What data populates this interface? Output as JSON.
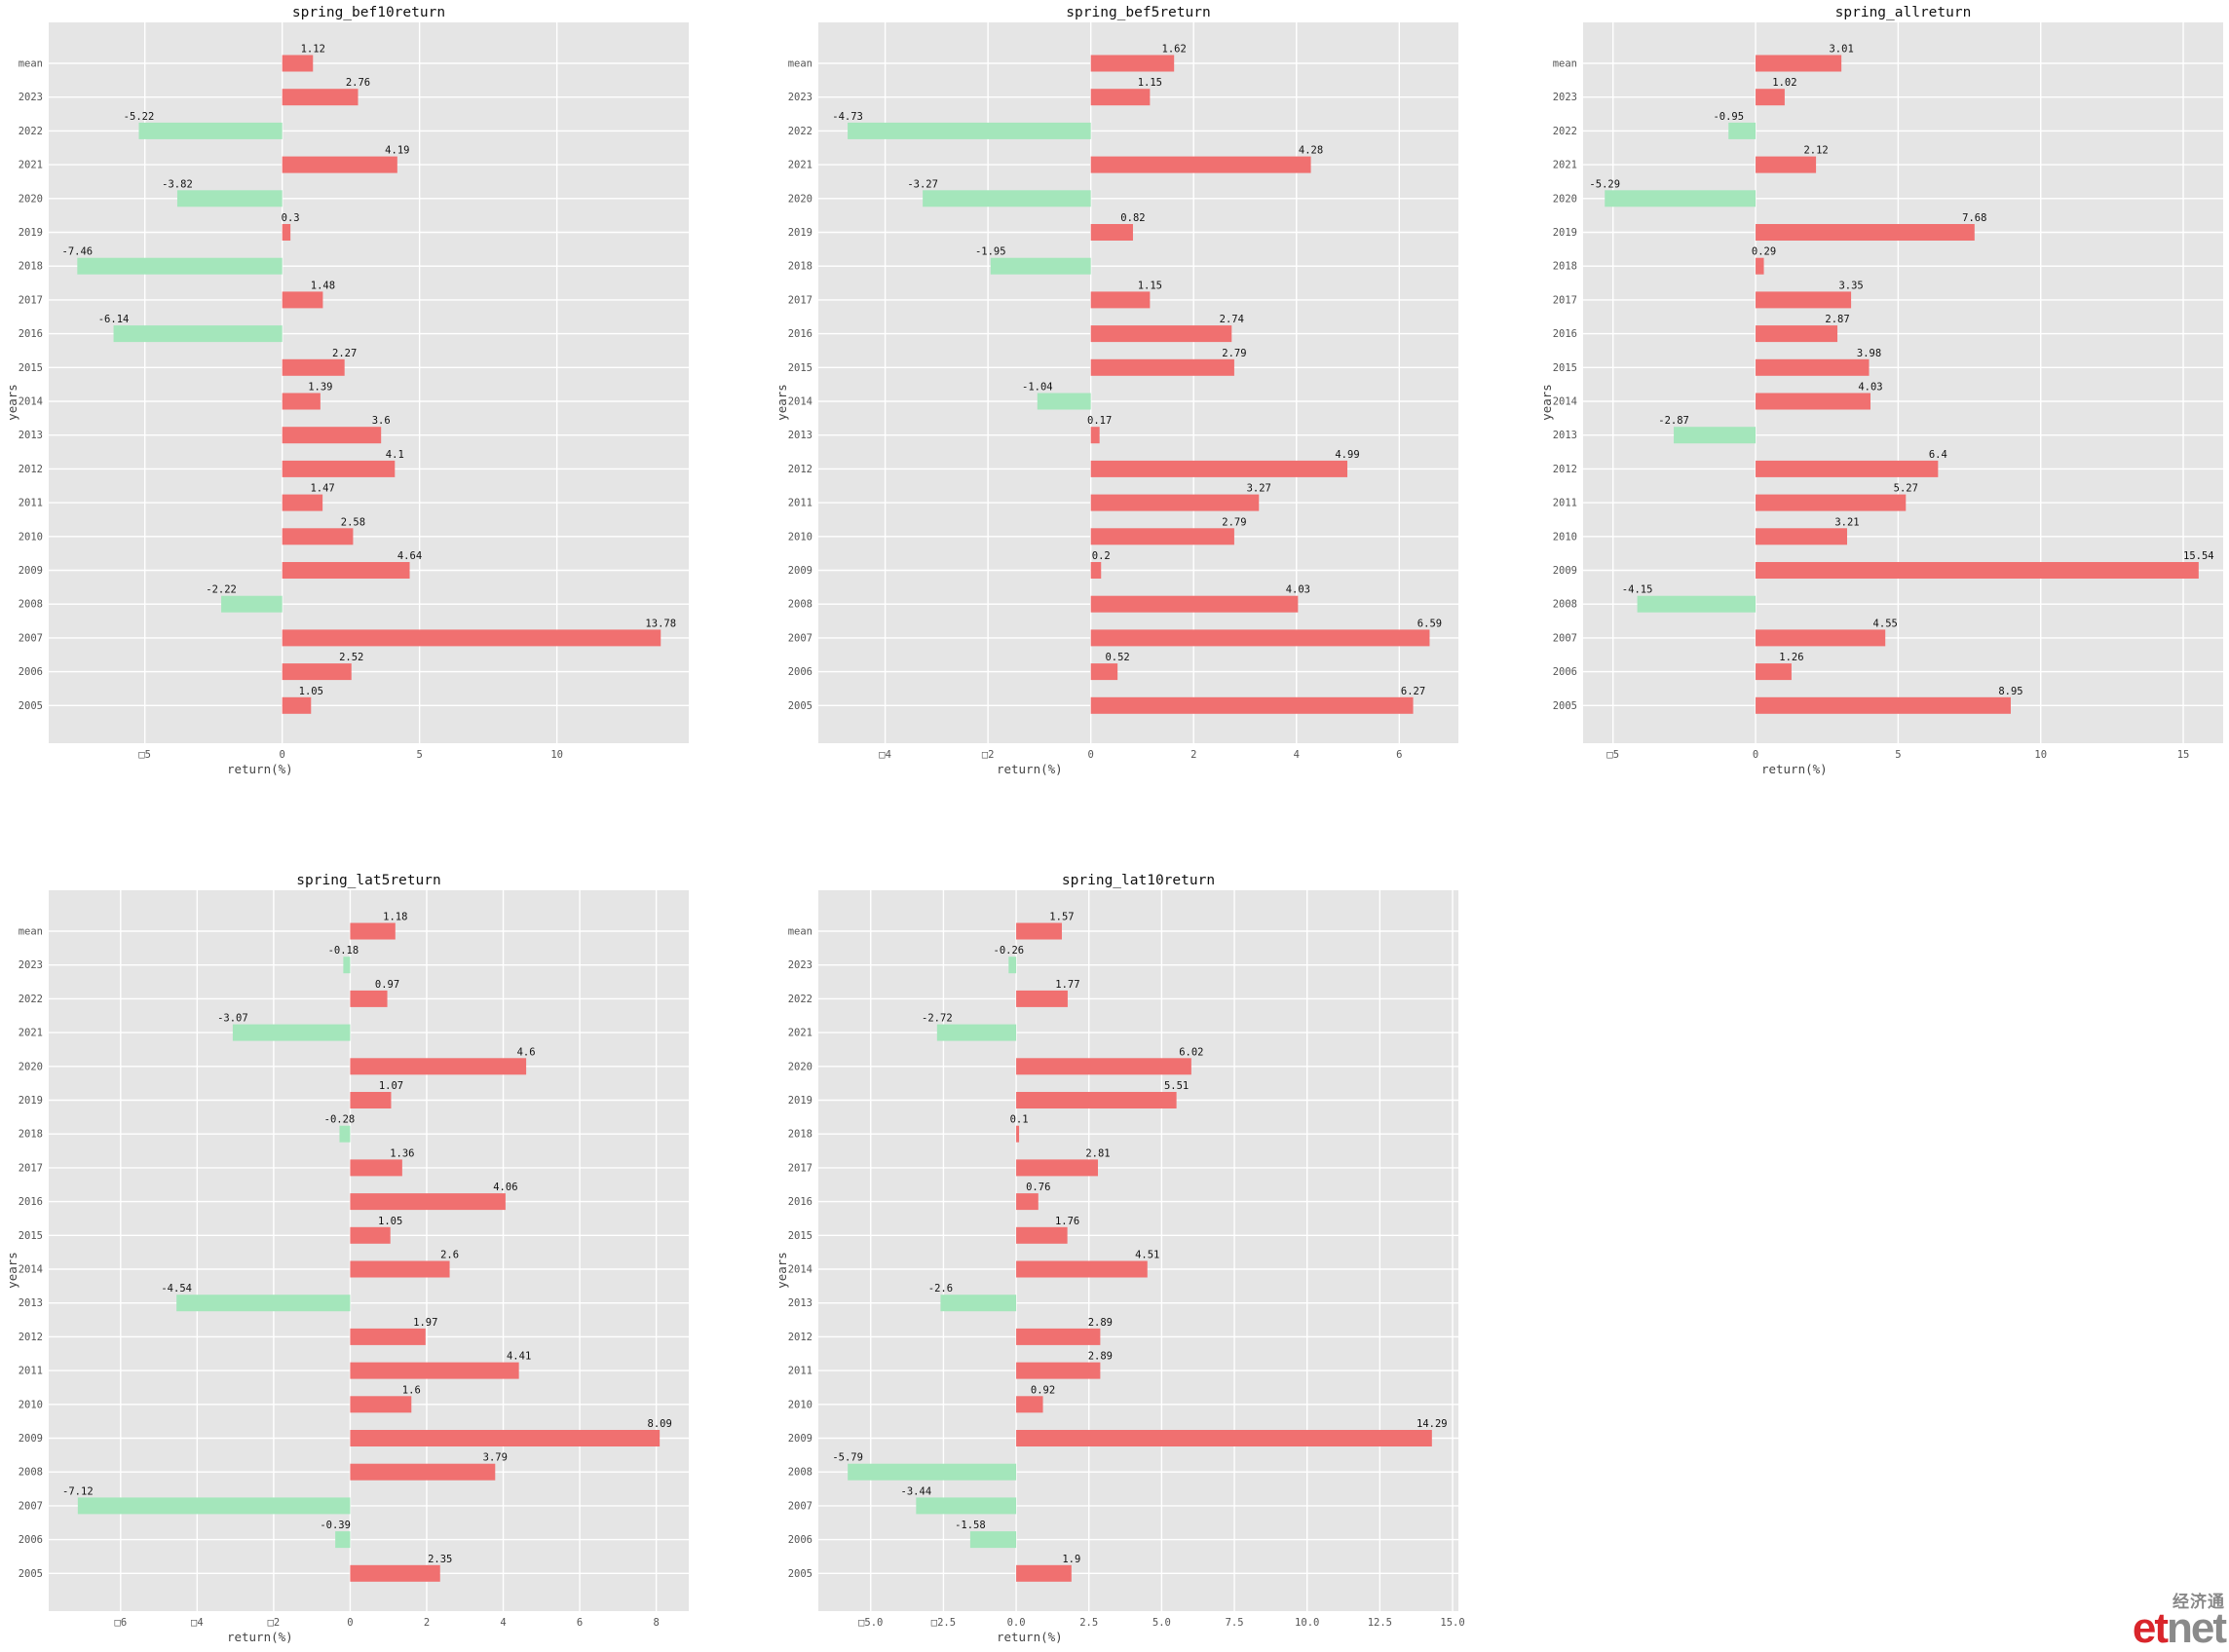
{
  "colors": {
    "positive": "#f07070",
    "negative": "#a4e6bb",
    "plot_bg": "#e5e5e5",
    "grid": "#ffffff"
  },
  "chart_data": [
    {
      "type": "bar",
      "orientation": "horizontal",
      "title": "spring_bef10return",
      "xlabel": "return(%)",
      "ylabel": "years",
      "categories": [
        "mean",
        "2023",
        "2022",
        "2021",
        "2020",
        "2019",
        "2018",
        "2017",
        "2016",
        "2015",
        "2014",
        "2013",
        "2012",
        "2011",
        "2010",
        "2009",
        "2008",
        "2007",
        "2006",
        "2005"
      ],
      "values": [
        1.12,
        2.76,
        -5.22,
        4.19,
        -3.82,
        0.3,
        -7.46,
        1.48,
        -6.14,
        2.27,
        1.39,
        3.6,
        4.1,
        1.47,
        2.58,
        4.64,
        -2.22,
        13.78,
        2.52,
        1.05
      ],
      "value_labels": [
        "1.12",
        "2.76",
        "-5.22",
        "4.19",
        "-3.82",
        "0.3",
        "-7.46",
        "1.48",
        "-6.14",
        "2.27",
        "1.39",
        "3.6",
        "4.1",
        "1.47",
        "2.58",
        "4.64",
        "-2.22",
        "13.78",
        "2.52",
        "1.05"
      ],
      "xlim": [
        -8.5,
        14.8
      ],
      "xticks": [
        -5,
        0,
        5,
        10
      ],
      "xtick_labels": [
        "□5",
        "0",
        "5",
        "10"
      ],
      "grid": true
    },
    {
      "type": "bar",
      "orientation": "horizontal",
      "title": "spring_bef5return",
      "xlabel": "return(%)",
      "ylabel": "years",
      "categories": [
        "mean",
        "2023",
        "2022",
        "2021",
        "2020",
        "2019",
        "2018",
        "2017",
        "2016",
        "2015",
        "2014",
        "2013",
        "2012",
        "2011",
        "2010",
        "2009",
        "2008",
        "2007",
        "2006",
        "2005"
      ],
      "values": [
        1.62,
        1.15,
        -4.73,
        4.28,
        -3.27,
        0.82,
        -1.95,
        1.15,
        2.74,
        2.79,
        -1.04,
        0.17,
        4.99,
        3.27,
        2.79,
        0.2,
        4.03,
        6.59,
        0.52,
        6.27
      ],
      "value_labels": [
        "1.62",
        "1.15",
        "-4.73",
        "4.28",
        "-3.27",
        "0.82",
        "-1.95",
        "1.15",
        "2.74",
        "2.79",
        "-1.04",
        "0.17",
        "4.99",
        "3.27",
        "2.79",
        "0.2",
        "4.03",
        "6.59",
        "0.52",
        "6.27"
      ],
      "xlim": [
        -5.3,
        7.15
      ],
      "xticks": [
        -4,
        -2,
        0,
        2,
        4,
        6
      ],
      "xtick_labels": [
        "□4",
        "□2",
        "0",
        "2",
        "4",
        "6"
      ],
      "grid": true
    },
    {
      "type": "bar",
      "orientation": "horizontal",
      "title": "spring_allreturn",
      "xlabel": "return(%)",
      "ylabel": "years",
      "categories": [
        "mean",
        "2023",
        "2022",
        "2021",
        "2020",
        "2019",
        "2018",
        "2017",
        "2016",
        "2015",
        "2014",
        "2013",
        "2012",
        "2011",
        "2010",
        "2009",
        "2008",
        "2007",
        "2006",
        "2005"
      ],
      "values": [
        3.01,
        1.02,
        -0.95,
        2.12,
        -5.29,
        7.68,
        0.29,
        3.35,
        2.87,
        3.98,
        4.03,
        -2.87,
        6.4,
        5.27,
        3.21,
        15.54,
        -4.15,
        4.55,
        1.26,
        8.95
      ],
      "value_labels": [
        "3.01",
        "1.02",
        "-0.95",
        "2.12",
        "-5.29",
        "7.68",
        "0.29",
        "3.35",
        "2.87",
        "3.98",
        "4.03",
        "-2.87",
        "6.4",
        "5.27",
        "3.21",
        "15.54",
        "-4.15",
        "4.55",
        "1.26",
        "8.95"
      ],
      "xlim": [
        -6.05,
        16.4
      ],
      "xticks": [
        -5,
        0,
        5,
        10,
        15
      ],
      "xtick_labels": [
        "□5",
        "0",
        "5",
        "10",
        "15"
      ],
      "grid": true
    },
    {
      "type": "bar",
      "orientation": "horizontal",
      "title": "spring_lat5return",
      "xlabel": "return(%)",
      "ylabel": "years",
      "categories": [
        "mean",
        "2023",
        "2022",
        "2021",
        "2020",
        "2019",
        "2018",
        "2017",
        "2016",
        "2015",
        "2014",
        "2013",
        "2012",
        "2011",
        "2010",
        "2009",
        "2008",
        "2007",
        "2006",
        "2005"
      ],
      "values": [
        1.18,
        -0.18,
        0.97,
        -3.07,
        4.6,
        1.07,
        -0.28,
        1.36,
        4.06,
        1.05,
        2.6,
        -4.54,
        1.97,
        4.41,
        1.6,
        8.09,
        3.79,
        -7.12,
        -0.39,
        2.35
      ],
      "value_labels": [
        "1.18",
        "-0.18",
        "0.97",
        "-3.07",
        "4.6",
        "1.07",
        "-0.28",
        "1.36",
        "4.06",
        "1.05",
        "2.6",
        "-4.54",
        "1.97",
        "4.41",
        "1.6",
        "8.09",
        "3.79",
        "-7.12",
        "-0.39",
        "2.35"
      ],
      "xlim": [
        -7.88,
        8.85
      ],
      "xticks": [
        -6,
        -4,
        -2,
        0,
        2,
        4,
        6,
        8
      ],
      "xtick_labels": [
        "□6",
        "□4",
        "□2",
        "0",
        "2",
        "4",
        "6",
        "8"
      ],
      "grid": true
    },
    {
      "type": "bar",
      "orientation": "horizontal",
      "title": "spring_lat10return",
      "xlabel": "return(%)",
      "ylabel": "years",
      "categories": [
        "mean",
        "2023",
        "2022",
        "2021",
        "2020",
        "2019",
        "2018",
        "2017",
        "2016",
        "2015",
        "2014",
        "2013",
        "2012",
        "2011",
        "2010",
        "2009",
        "2008",
        "2007",
        "2006",
        "2005"
      ],
      "values": [
        1.57,
        -0.26,
        1.77,
        -2.72,
        6.02,
        5.51,
        0.1,
        2.81,
        0.76,
        1.76,
        4.51,
        -2.6,
        2.89,
        2.89,
        0.92,
        14.29,
        -5.79,
        -3.44,
        -1.58,
        1.9
      ],
      "value_labels": [
        "1.57",
        "-0.26",
        "1.77",
        "-2.72",
        "6.02",
        "5.51",
        "0.1",
        "2.81",
        "0.76",
        "1.76",
        "4.51",
        "-2.6",
        "2.89",
        "2.89",
        "0.92",
        "14.29",
        "-5.79",
        "-3.44",
        "-1.58",
        "1.9"
      ],
      "xlim": [
        -6.8,
        15.2
      ],
      "xticks": [
        -5,
        -2.5,
        0,
        2.5,
        5,
        7.5,
        10,
        12.5,
        15
      ],
      "xtick_labels": [
        "□5.0",
        "□2.5",
        "0.0",
        "2.5",
        "5.0",
        "7.5",
        "10.0",
        "12.5",
        "15.0"
      ],
      "grid": true
    }
  ],
  "logo": {
    "chinese": "经济通",
    "et": "et",
    "net": "net"
  }
}
